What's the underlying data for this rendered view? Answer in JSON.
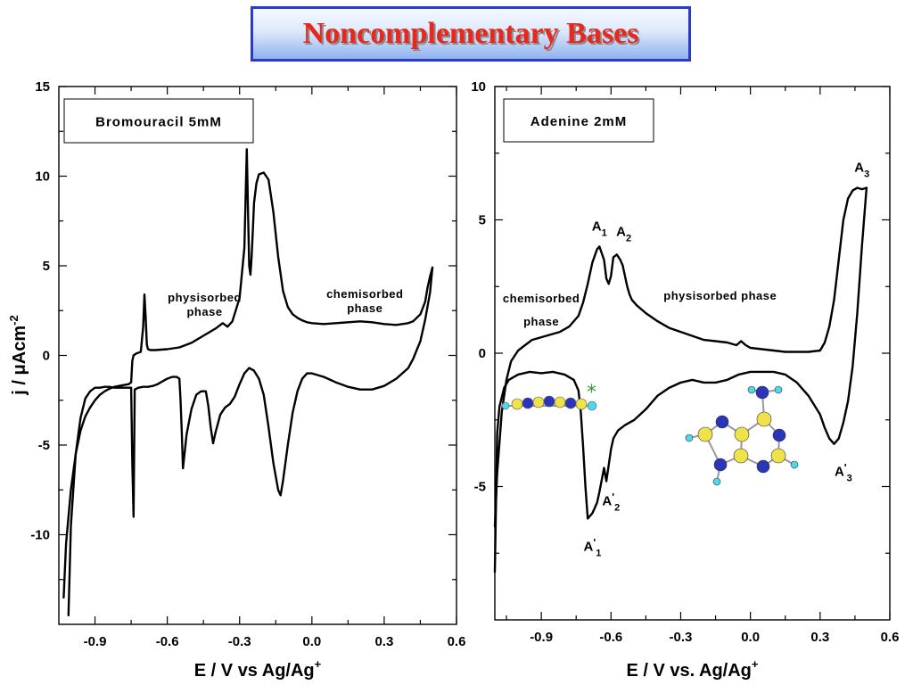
{
  "title": "Noncomplementary Bases",
  "chart_data": [
    {
      "type": "line",
      "panel_label": "Bromouracil 5mM",
      "xlabel_main": "E / V  vs Ag/Ag",
      "xlabel_sup": "+",
      "ylabel_main": "j / μAcm",
      "ylabel_sup": "-2",
      "xlim": [
        -1.05,
        0.6
      ],
      "ylim": [
        -15,
        15
      ],
      "xticks": [
        -0.9,
        -0.6,
        -0.3,
        0.0,
        0.3,
        0.6
      ],
      "xtick_labels": [
        "-0.9",
        "-0.6",
        "-0.3",
        "0.0",
        "0.3",
        "0.6"
      ],
      "yticks": [
        15,
        10,
        5,
        0,
        -5,
        -10
      ],
      "ytick_labels": [
        "15",
        "10",
        "5",
        "0",
        "-5",
        "-10"
      ],
      "annotations": [
        {
          "lines": [
            "physisorbed",
            "phase"
          ],
          "x": -0.445,
          "y": 3.0
        },
        {
          "lines": [
            "chemisorbed",
            "phase"
          ],
          "x": 0.22,
          "y": 3.2
        }
      ],
      "series": [
        {
          "x": [
            -1.03,
            -1.02,
            -1.0,
            -0.98,
            -0.96,
            -0.94,
            -0.92,
            -0.9,
            -0.88,
            -0.86,
            -0.84,
            -0.82,
            -0.8,
            -0.78,
            -0.76,
            -0.75,
            -0.745,
            -0.74,
            -0.73,
            -0.71,
            -0.7,
            -0.695,
            -0.69,
            -0.685,
            -0.68,
            -0.67,
            -0.65,
            -0.6,
            -0.55,
            -0.5,
            -0.45,
            -0.4,
            -0.37,
            -0.35,
            -0.33,
            -0.3,
            -0.28,
            -0.27,
            -0.265,
            -0.26,
            -0.255,
            -0.25,
            -0.245,
            -0.24,
            -0.23,
            -0.22,
            -0.2,
            -0.18,
            -0.16,
            -0.14,
            -0.12,
            -0.1,
            -0.08,
            -0.06,
            -0.04,
            -0.02,
            0.0,
            0.05,
            0.1,
            0.15,
            0.2,
            0.25,
            0.3,
            0.35,
            0.4,
            0.42,
            0.45,
            0.47,
            0.48,
            0.49,
            0.5
          ],
          "y": [
            -13.5,
            -10.5,
            -7.5,
            -5.5,
            -4.2,
            -3.4,
            -2.9,
            -2.5,
            -2.2,
            -2.0,
            -1.85,
            -1.75,
            -1.7,
            -1.65,
            -1.6,
            -1.5,
            -0.3,
            0.0,
            0.1,
            0.2,
            1.6,
            3.4,
            2.2,
            0.6,
            0.35,
            0.3,
            0.3,
            0.35,
            0.45,
            0.7,
            1.1,
            1.5,
            1.8,
            1.6,
            1.9,
            3.2,
            6.0,
            11.5,
            8.0,
            5.0,
            4.5,
            5.5,
            7.0,
            8.5,
            9.6,
            10.1,
            10.2,
            9.8,
            8.0,
            5.5,
            3.6,
            2.7,
            2.3,
            2.1,
            1.95,
            1.85,
            1.8,
            1.75,
            1.8,
            1.85,
            1.9,
            1.85,
            1.75,
            1.7,
            1.8,
            1.9,
            2.3,
            3.0,
            3.8,
            4.4,
            4.9
          ]
        },
        {
          "x": [
            0.5,
            0.49,
            0.47,
            0.45,
            0.42,
            0.4,
            0.35,
            0.3,
            0.25,
            0.2,
            0.15,
            0.1,
            0.05,
            0.0,
            -0.02,
            -0.04,
            -0.06,
            -0.08,
            -0.1,
            -0.12,
            -0.13,
            -0.14,
            -0.16,
            -0.18,
            -0.2,
            -0.22,
            -0.24,
            -0.26,
            -0.28,
            -0.3,
            -0.32,
            -0.34,
            -0.36,
            -0.38,
            -0.4,
            -0.41,
            -0.42,
            -0.43,
            -0.44,
            -0.46,
            -0.48,
            -0.5,
            -0.52,
            -0.535,
            -0.54,
            -0.545,
            -0.55,
            -0.56,
            -0.58,
            -0.6,
            -0.62,
            -0.64,
            -0.66,
            -0.68,
            -0.7,
            -0.72,
            -0.735,
            -0.74,
            -0.745,
            -0.75,
            -0.76,
            -0.78,
            -0.8,
            -0.82,
            -0.84,
            -0.86,
            -0.88,
            -0.9,
            -0.92,
            -0.94,
            -0.96,
            -0.98,
            -1.0,
            -1.01
          ],
          "y": [
            4.9,
            3.5,
            2.0,
            0.8,
            -0.2,
            -0.7,
            -1.3,
            -1.7,
            -1.9,
            -1.9,
            -1.75,
            -1.5,
            -1.2,
            -1.0,
            -1.0,
            -1.3,
            -2.0,
            -3.2,
            -5.0,
            -7.0,
            -7.8,
            -7.5,
            -6.0,
            -4.0,
            -2.2,
            -1.3,
            -0.85,
            -0.7,
            -1.0,
            -1.6,
            -2.3,
            -2.7,
            -2.9,
            -3.3,
            -4.3,
            -4.9,
            -4.0,
            -2.8,
            -2.0,
            -2.0,
            -2.2,
            -3.0,
            -4.4,
            -6.3,
            -4.3,
            -2.5,
            -1.3,
            -1.2,
            -1.2,
            -1.3,
            -1.45,
            -1.6,
            -1.7,
            -1.75,
            -1.75,
            -1.8,
            -1.9,
            -9.0,
            -6.0,
            -1.8,
            -1.8,
            -1.8,
            -1.8,
            -1.8,
            -1.75,
            -1.75,
            -1.8,
            -1.8,
            -2.0,
            -2.4,
            -3.5,
            -5.5,
            -9.5,
            -14.5
          ]
        }
      ]
    },
    {
      "type": "line",
      "panel_label": "Adenine 2mM",
      "xlabel_main": "E / V vs. Ag/Ag",
      "xlabel_sup": "+",
      "xlim": [
        -1.1,
        0.6
      ],
      "ylim": [
        -10,
        10
      ],
      "xticks": [
        -0.9,
        -0.6,
        -0.3,
        0.0,
        0.3,
        0.6
      ],
      "xtick_labels": [
        "-0.9",
        "-0.6",
        "-0.3",
        "0.0",
        "0.3",
        "0.6"
      ],
      "yticks": [
        10,
        5,
        0,
        -5
      ],
      "ytick_labels": [
        "10",
        "5",
        "0",
        "-5"
      ],
      "annotations": [
        {
          "lines": [
            "chemisorbed",
            "phase"
          ],
          "x": -0.9,
          "y": 1.9
        },
        {
          "lines": [
            "physisorbed phase"
          ],
          "x": -0.13,
          "y": 2.0
        }
      ],
      "peaks": [
        {
          "base": "A",
          "sub": "1",
          "prime": false,
          "x": -0.65,
          "y": 4.6
        },
        {
          "base": "A",
          "sub": "2",
          "prime": false,
          "x": -0.545,
          "y": 4.4
        },
        {
          "base": "A",
          "sub": "3",
          "prime": false,
          "x": 0.48,
          "y": 6.8
        },
        {
          "base": "A",
          "sub": "1",
          "prime": true,
          "x": -0.68,
          "y": -7.4
        },
        {
          "base": "A",
          "sub": "2",
          "prime": true,
          "x": -0.6,
          "y": -5.7
        },
        {
          "base": "A",
          "sub": "3",
          "prime": true,
          "x": 0.4,
          "y": -4.6
        }
      ],
      "series": [
        {
          "x": [
            -1.1,
            -1.09,
            -1.07,
            -1.05,
            -1.03,
            -1.0,
            -0.97,
            -0.94,
            -0.9,
            -0.86,
            -0.82,
            -0.78,
            -0.74,
            -0.72,
            -0.7,
            -0.68,
            -0.66,
            -0.65,
            -0.63,
            -0.62,
            -0.61,
            -0.6,
            -0.59,
            -0.575,
            -0.56,
            -0.55,
            -0.54,
            -0.53,
            -0.52,
            -0.51,
            -0.49,
            -0.45,
            -0.4,
            -0.35,
            -0.3,
            -0.25,
            -0.2,
            -0.15,
            -0.1,
            -0.06,
            -0.04,
            -0.02,
            0.0,
            0.05,
            0.1,
            0.15,
            0.2,
            0.25,
            0.3,
            0.32,
            0.34,
            0.36,
            0.38,
            0.4,
            0.42,
            0.44,
            0.46,
            0.48,
            0.5
          ],
          "y": [
            -6.5,
            -4.5,
            -2.2,
            -1.0,
            -0.3,
            0.1,
            0.3,
            0.5,
            0.6,
            0.7,
            0.8,
            1.0,
            1.4,
            1.9,
            2.6,
            3.4,
            3.9,
            4.0,
            3.5,
            2.8,
            2.6,
            2.9,
            3.6,
            3.7,
            3.5,
            3.3,
            2.9,
            2.5,
            2.2,
            2.0,
            1.8,
            1.5,
            1.2,
            0.95,
            0.8,
            0.65,
            0.5,
            0.45,
            0.4,
            0.3,
            0.45,
            0.3,
            0.2,
            0.15,
            0.1,
            0.05,
            0.05,
            0.05,
            0.1,
            0.4,
            1.0,
            2.0,
            3.5,
            5.0,
            5.8,
            6.1,
            6.2,
            6.15,
            6.2
          ]
        },
        {
          "x": [
            0.5,
            0.48,
            0.46,
            0.44,
            0.42,
            0.4,
            0.38,
            0.36,
            0.34,
            0.32,
            0.3,
            0.25,
            0.2,
            0.15,
            0.1,
            0.05,
            0.0,
            -0.05,
            -0.1,
            -0.15,
            -0.2,
            -0.25,
            -0.3,
            -0.35,
            -0.4,
            -0.45,
            -0.5,
            -0.54,
            -0.57,
            -0.59,
            -0.6,
            -0.61,
            -0.62,
            -0.63,
            -0.65,
            -0.66,
            -0.67,
            -0.68,
            -0.69,
            -0.7,
            -0.71,
            -0.72,
            -0.73,
            -0.74,
            -0.76,
            -0.8,
            -0.85,
            -0.9,
            -0.95,
            -1.0,
            -1.04,
            -1.06,
            -1.08,
            -1.09,
            -1.1
          ],
          "y": [
            6.2,
            4.0,
            1.5,
            -0.5,
            -1.8,
            -2.6,
            -3.2,
            -3.4,
            -3.2,
            -2.8,
            -2.3,
            -1.6,
            -1.1,
            -0.8,
            -0.7,
            -0.7,
            -0.7,
            -0.8,
            -1.0,
            -1.1,
            -1.1,
            -1.0,
            -1.1,
            -1.3,
            -1.6,
            -2.1,
            -2.5,
            -2.7,
            -2.9,
            -3.2,
            -3.6,
            -4.2,
            -4.8,
            -4.3,
            -5.2,
            -5.6,
            -5.8,
            -6.0,
            -6.1,
            -6.2,
            -5.0,
            -3.5,
            -2.2,
            -1.4,
            -1.0,
            -0.8,
            -0.7,
            -0.75,
            -0.7,
            -0.8,
            -1.0,
            -1.3,
            -2.0,
            -3.0,
            -8.2
          ]
        }
      ]
    }
  ]
}
